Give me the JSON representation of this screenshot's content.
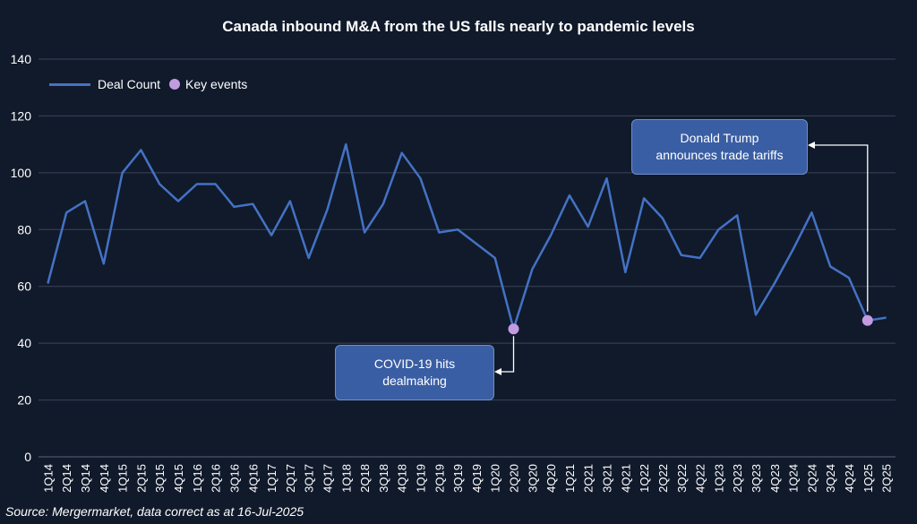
{
  "chart_data": {
    "type": "line",
    "title": "Canada inbound M&A from the US falls nearly to pandemic levels",
    "source": "Source: Mergermarket, data correct as at 16-Jul-2025",
    "categories": [
      "1Q14",
      "2Q14",
      "3Q14",
      "4Q14",
      "1Q15",
      "2Q15",
      "3Q15",
      "4Q15",
      "1Q16",
      "2Q16",
      "3Q16",
      "4Q16",
      "1Q17",
      "2Q17",
      "3Q17",
      "4Q17",
      "1Q18",
      "2Q18",
      "3Q18",
      "4Q18",
      "1Q19",
      "2Q19",
      "3Q19",
      "4Q19",
      "1Q20",
      "2Q20",
      "3Q20",
      "4Q20",
      "1Q21",
      "2Q21",
      "3Q21",
      "4Q21",
      "1Q22",
      "2Q22",
      "3Q22",
      "4Q22",
      "1Q23",
      "2Q23",
      "3Q23",
      "4Q23",
      "1Q24",
      "2Q24",
      "3Q24",
      "4Q24",
      "1Q25",
      "2Q25"
    ],
    "series": [
      {
        "name": "Deal Count",
        "color": "#4472c4",
        "values": [
          61,
          86,
          90,
          68,
          100,
          108,
          96,
          90,
          96,
          96,
          88,
          89,
          78,
          90,
          70,
          87,
          110,
          79,
          89,
          107,
          98,
          79,
          80,
          75,
          70,
          45,
          66,
          78,
          92,
          81,
          98,
          65,
          91,
          84,
          71,
          70,
          80,
          85,
          50,
          61,
          73,
          86,
          67,
          63,
          48,
          49
        ]
      }
    ],
    "key_events": {
      "name": "Key events",
      "color": "#c39be0",
      "points": [
        {
          "category": "2Q20",
          "value": 45
        },
        {
          "category": "1Q25",
          "value": 48
        }
      ]
    },
    "yticks": [
      0,
      20,
      40,
      60,
      80,
      100,
      120,
      140
    ],
    "ylim": [
      0,
      140
    ],
    "xlabel": "",
    "ylabel": "",
    "legend_position": "top-left",
    "grid": true,
    "annotations": [
      {
        "lines": [
          "COVID-19 hits",
          "dealmaking"
        ],
        "target": "2Q20"
      },
      {
        "lines": [
          "Donald Trump",
          "announces trade tariffs"
        ],
        "target": "1Q25"
      }
    ]
  }
}
